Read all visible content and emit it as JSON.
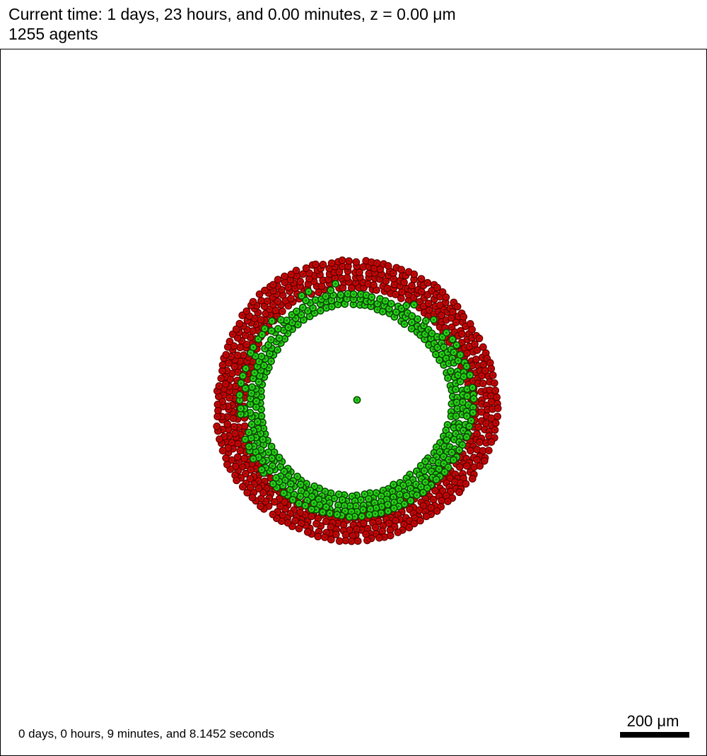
{
  "header": {
    "time_line": "Current time: 1 days, 23 hours, and 0.00 minutes, z = 0.00 μm",
    "agents_line": "1255 agents"
  },
  "footer": {
    "elapsed": "0 days, 0 hours, 9 minutes, and 8.1452 seconds",
    "scalebar_label": "200 μm"
  },
  "colors": {
    "outer_cell_fill": "#d90000",
    "outer_cell_edge": "#6a0000",
    "inner_cell_fill": "#22dd10",
    "inner_cell_edge": "#0b4a05",
    "cell_nucleus": "#2a2a2a",
    "frame": "#000000",
    "background": "#ffffff"
  }
}
